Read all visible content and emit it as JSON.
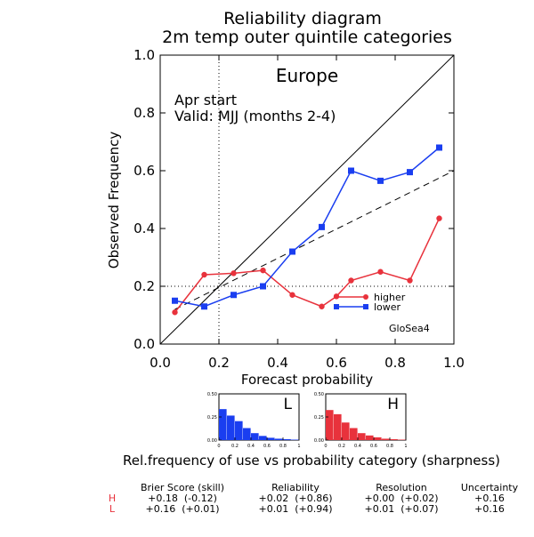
{
  "chart_data": [
    {
      "type": "line",
      "title": "Reliability diagram",
      "subtitle": "2m temp outer quintile categories",
      "region": "Europe",
      "start": "Apr start",
      "valid": "Valid: MJJ (months 2-4)",
      "xlabel": "Forecast probability",
      "ylabel": "Observed Frequency",
      "xlim": [
        0,
        1.0
      ],
      "ylim": [
        0,
        1.0
      ],
      "xticks": [
        "0.0",
        "0.2",
        "0.4",
        "0.6",
        "0.8",
        "1.0"
      ],
      "yticks": [
        "0.0",
        "0.2",
        "0.4",
        "0.6",
        "0.8",
        "1.0"
      ],
      "model": "GloSea4",
      "climatology_probability": 0.2,
      "series": [
        {
          "name": "higher",
          "color": "#e8323c",
          "marker": "circle",
          "x": [
            0.05,
            0.15,
            0.25,
            0.35,
            0.45,
            0.55,
            0.6,
            0.65,
            0.75,
            0.85,
            0.95
          ],
          "y": [
            0.11,
            0.24,
            0.245,
            0.255,
            0.17,
            0.13,
            0.165,
            0.22,
            0.25,
            0.22,
            0.435
          ]
        },
        {
          "name": "lower",
          "color": "#1a3ef0",
          "marker": "square",
          "x": [
            0.05,
            0.15,
            0.25,
            0.35,
            0.45,
            0.55,
            0.65,
            0.75,
            0.85,
            0.95
          ],
          "y": [
            0.15,
            0.13,
            0.17,
            0.2,
            0.32,
            0.405,
            0.6,
            0.565,
            0.595,
            0.68
          ]
        }
      ],
      "reference_lines": [
        {
          "style": "solid",
          "x": [
            0,
            1
          ],
          "y": [
            0,
            1
          ]
        },
        {
          "style": "dashed",
          "x": [
            0.05,
            1
          ],
          "y": [
            0.12,
            0.6
          ]
        },
        {
          "style": "dotted-horizontal",
          "y": 0.2
        },
        {
          "style": "dotted-vertical",
          "x": 0.2
        }
      ]
    },
    {
      "type": "bar",
      "label": "L",
      "color": "#1a3ef0",
      "ylim": [
        0,
        0.5
      ],
      "yticks": [
        "0.50",
        "0.25",
        "0.00"
      ],
      "xticks": [
        "0",
        "0.2",
        "0.4",
        "0.6",
        "0.8",
        "1"
      ],
      "values": [
        0.335,
        0.265,
        0.205,
        0.13,
        0.075,
        0.045,
        0.025,
        0.015,
        0.01,
        0.005
      ]
    },
    {
      "type": "bar",
      "label": "H",
      "color": "#e8323c",
      "ylim": [
        0,
        0.5
      ],
      "yticks": [
        "0.50",
        "0.25",
        "0.00"
      ],
      "xticks": [
        "0",
        "0.2",
        "0.4",
        "0.6",
        "0.8",
        "1"
      ],
      "values": [
        0.325,
        0.28,
        0.19,
        0.13,
        0.075,
        0.05,
        0.03,
        0.015,
        0.01,
        0.005
      ]
    }
  ],
  "sharpness_caption": "Rel.frequency of use vs probability category (sharpness)",
  "scores": {
    "headers": [
      "Brier Score (skill)",
      "Reliability",
      "Resolution",
      "Uncertainty"
    ],
    "rows": [
      {
        "label": "H",
        "color": "#e8323c",
        "cells": [
          "+0.18  (-0.12)",
          "+0.02  (+0.86)",
          "+0.00  (+0.02)",
          "+0.16"
        ]
      },
      {
        "label": "L",
        "color": "#e8323c",
        "cells": [
          "+0.16  (+0.01)",
          "+0.01  (+0.94)",
          "+0.01  (+0.07)",
          "+0.16"
        ]
      }
    ]
  }
}
